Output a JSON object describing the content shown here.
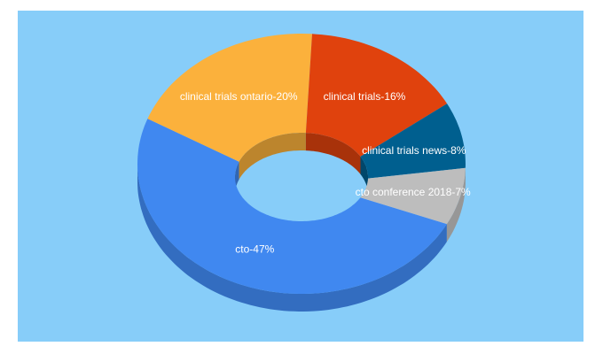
{
  "chart_data": {
    "type": "donut3d",
    "labels": [
      "cto-47%",
      "clinical trials ontario-20%",
      "clinical trials-16%",
      "clinical trials news-8%",
      "cto conference 2018-7%"
    ],
    "values": [
      47,
      20,
      16,
      8,
      7
    ],
    "colors": [
      "#4088f0",
      "#fbb13c",
      "#e0420d",
      "#005f8f",
      "#bdbdbd"
    ]
  }
}
